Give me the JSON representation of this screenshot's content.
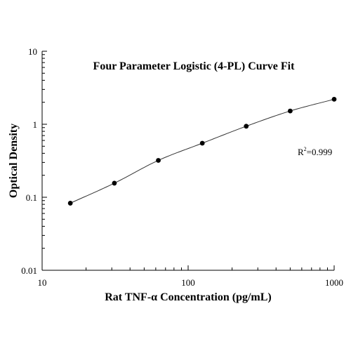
{
  "chart_data": {
    "type": "scatter",
    "title": "Four Parameter Logistic (4-PL) Curve Fit",
    "xlabel": "Rat TNF-α Concentration (pg/mL)",
    "ylabel": "Optical Density",
    "x_scale": "log",
    "y_scale": "log",
    "xlim": [
      10,
      1000
    ],
    "ylim": [
      0.01,
      10
    ],
    "x_ticks": [
      "10",
      "100",
      "1000"
    ],
    "y_ticks": [
      "0.01",
      "0.1",
      "1",
      "10"
    ],
    "grid": false,
    "legend": "none",
    "annotation": {
      "r_symbol": "R",
      "r_superscript": "2",
      "r_value": "=0.999"
    },
    "series": [
      {
        "x": [
          15.6,
          31.25,
          62.5,
          125,
          250,
          500,
          1000
        ],
        "y": [
          0.083,
          0.156,
          0.32,
          0.55,
          0.94,
          1.52,
          2.2
        ],
        "fit_curve": "4-PL"
      }
    ],
    "colors": {
      "marker": "#000000",
      "curve": "#333333",
      "axis": "#000000"
    }
  }
}
